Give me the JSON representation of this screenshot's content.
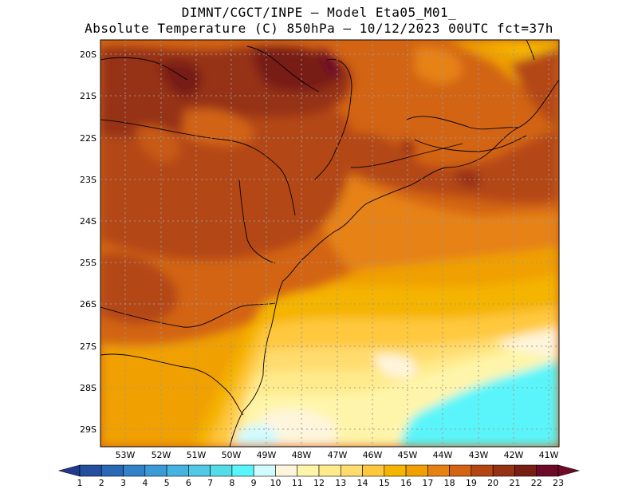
{
  "title": {
    "line1": "DIMNT/CGCT/INPE —  Model Eta05_M01_",
    "line2": "Absolute Temperature (C) 850hPa —  10/12/2023 00UTC fct=37h"
  },
  "map": {
    "lat_labels": [
      "20S",
      "21S",
      "22S",
      "23S",
      "24S",
      "25S",
      "26S",
      "27S",
      "28S",
      "29S"
    ],
    "lon_labels": [
      "53W",
      "52W",
      "51W",
      "50W",
      "49W",
      "48W",
      "47W",
      "46W",
      "45W",
      "44W",
      "43W",
      "42W",
      "41W"
    ]
  },
  "colorbar": {
    "labels": [
      "1",
      "2",
      "3",
      "4",
      "5",
      "6",
      "7",
      "8",
      "9",
      "10",
      "11",
      "12",
      "13",
      "14",
      "15",
      "16",
      "17",
      "18",
      "19",
      "20",
      "21",
      "22",
      "23"
    ],
    "colors": [
      "#1e3c8c",
      "#234f9f",
      "#2868b4",
      "#3282c8",
      "#3c9bd7",
      "#46b4e1",
      "#50c8e6",
      "#55dceb",
      "#5af5fa",
      "#d2faff",
      "#fff5dc",
      "#fff5aa",
      "#ffeb8c",
      "#ffdc6e",
      "#ffc83c",
      "#f5b400",
      "#f0a000",
      "#e68214",
      "#d26414",
      "#b44614",
      "#963214",
      "#781e14",
      "#6e0a28"
    ]
  }
}
